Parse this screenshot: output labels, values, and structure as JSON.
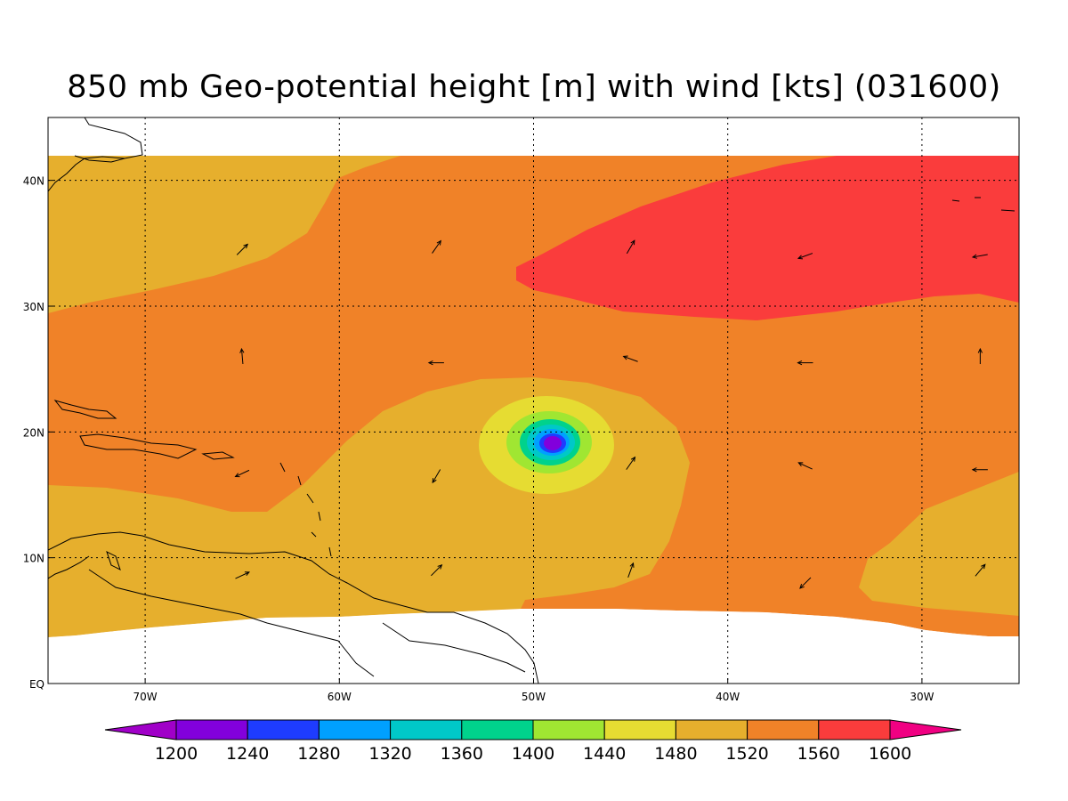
{
  "title": "850 mb Geo-potential height [m] with wind [kts] (031600)",
  "map": {
    "lon_range": [
      -75,
      -25
    ],
    "lat_range": [
      0,
      45
    ],
    "lon_ticks": [
      {
        "value": -70,
        "label": "70W"
      },
      {
        "value": -60,
        "label": "60W"
      },
      {
        "value": -50,
        "label": "50W"
      },
      {
        "value": -40,
        "label": "40W"
      },
      {
        "value": -30,
        "label": "30W"
      }
    ],
    "lat_ticks": [
      {
        "value": 0,
        "label": "EQ"
      },
      {
        "value": 10,
        "label": "10N"
      },
      {
        "value": 20,
        "label": "20N"
      },
      {
        "value": 30,
        "label": "30N"
      },
      {
        "value": 40,
        "label": "40N"
      }
    ]
  },
  "colorbar": {
    "levels": [
      "1200",
      "1240",
      "1280",
      "1320",
      "1360",
      "1400",
      "1440",
      "1480",
      "1520",
      "1560",
      "1600"
    ],
    "colors": [
      "#a000c8",
      "#8200dc",
      "#1e3cff",
      "#00a0ff",
      "#00c8c8",
      "#00d28c",
      "#a0e632",
      "#e6dc32",
      "#e6af2d",
      "#f08228",
      "#fa3c3c",
      "#f00082"
    ]
  },
  "colors": {
    "c1480": "#e6dc32",
    "c1520": "#e6af2d",
    "c1560": "#f08228",
    "c1600": "#fa3c3c",
    "c1440": "#a0e632",
    "c1400": "#00d28c",
    "c1360": "#00c8c8",
    "c1320": "#00a0ff",
    "c1280": "#1e3cff",
    "c1240": "#8200dc"
  },
  "wind_vectors": [
    {
      "lon": -65,
      "lat": 34.5,
      "dir_deg": 45
    },
    {
      "lon": -55,
      "lat": 34.7,
      "dir_deg": 55
    },
    {
      "lon": -45,
      "lat": 34.7,
      "dir_deg": 60
    },
    {
      "lon": -36,
      "lat": 34,
      "dir_deg": 200
    },
    {
      "lon": -27,
      "lat": 34,
      "dir_deg": 190
    },
    {
      "lon": -65,
      "lat": 26,
      "dir_deg": 95
    },
    {
      "lon": -55,
      "lat": 25.5,
      "dir_deg": 180
    },
    {
      "lon": -45,
      "lat": 25.8,
      "dir_deg": 160
    },
    {
      "lon": -36,
      "lat": 25.5,
      "dir_deg": 180
    },
    {
      "lon": -27,
      "lat": 26,
      "dir_deg": 90
    },
    {
      "lon": -65,
      "lat": 16.7,
      "dir_deg": 205
    },
    {
      "lon": -55,
      "lat": 16.5,
      "dir_deg": 240
    },
    {
      "lon": -45,
      "lat": 17.5,
      "dir_deg": 55
    },
    {
      "lon": -36,
      "lat": 17.3,
      "dir_deg": 155
    },
    {
      "lon": -27,
      "lat": 17,
      "dir_deg": 180
    },
    {
      "lon": -65,
      "lat": 8.6,
      "dir_deg": 25
    },
    {
      "lon": -55,
      "lat": 9,
      "dir_deg": 45
    },
    {
      "lon": -45,
      "lat": 9,
      "dir_deg": 70
    },
    {
      "lon": -36,
      "lat": 8,
      "dir_deg": 225
    },
    {
      "lon": -27,
      "lat": 9,
      "dir_deg": 50
    }
  ]
}
